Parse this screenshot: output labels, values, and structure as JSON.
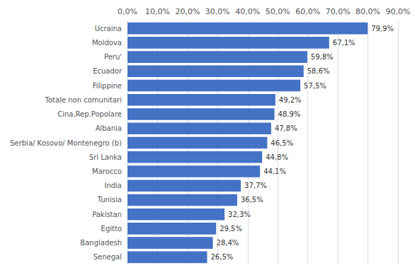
{
  "chart_data": {
    "type": "bar",
    "orientation": "horizontal",
    "categories": [
      "Senegal",
      "Bangladesh",
      "Egitto",
      "Pakistan",
      "Tunisia",
      "India",
      "Marocco",
      "Sri Lanka",
      "Serbia/ Kosovo/ Montenegro (b)",
      "Albania",
      "Cina,Rep.Popolare",
      "Totale non comunitari",
      "Filippine",
      "Ecuador",
      "Peru'",
      "Moldova",
      "Ucraina"
    ],
    "values": [
      26.5,
      28.4,
      29.5,
      32.3,
      36.5,
      37.7,
      44.1,
      44.8,
      46.5,
      47.8,
      48.9,
      49.2,
      57.5,
      58.6,
      59.8,
      67.1,
      79.9
    ],
    "value_labels": [
      "26,5%",
      "28,4%",
      "29,5%",
      "32,3%",
      "36,5%",
      "37,7%",
      "44,1%",
      "44,8%",
      "46,5%",
      "47,8%",
      "48,9%",
      "49,2%",
      "57,5%",
      "58,6%",
      "59,8%",
      "67,1%",
      "79,9%"
    ],
    "color": "#4472C4",
    "xlim": [
      0,
      90
    ],
    "xticks": [
      {
        "value": 0,
        "label": "0,0%"
      },
      {
        "value": 10,
        "label": "10,0%"
      },
      {
        "value": 20,
        "label": "20,0%"
      },
      {
        "value": 30,
        "label": "30,0%"
      },
      {
        "value": 40,
        "label": "40,0%"
      },
      {
        "value": 50,
        "label": "50,0%"
      },
      {
        "value": 60,
        "label": "60,0%"
      },
      {
        "value": 70,
        "label": "70,0%"
      },
      {
        "value": 80,
        "label": "80,0%"
      },
      {
        "value": 90,
        "label": "90,0%"
      }
    ],
    "grid": true,
    "data_labels": true
  }
}
